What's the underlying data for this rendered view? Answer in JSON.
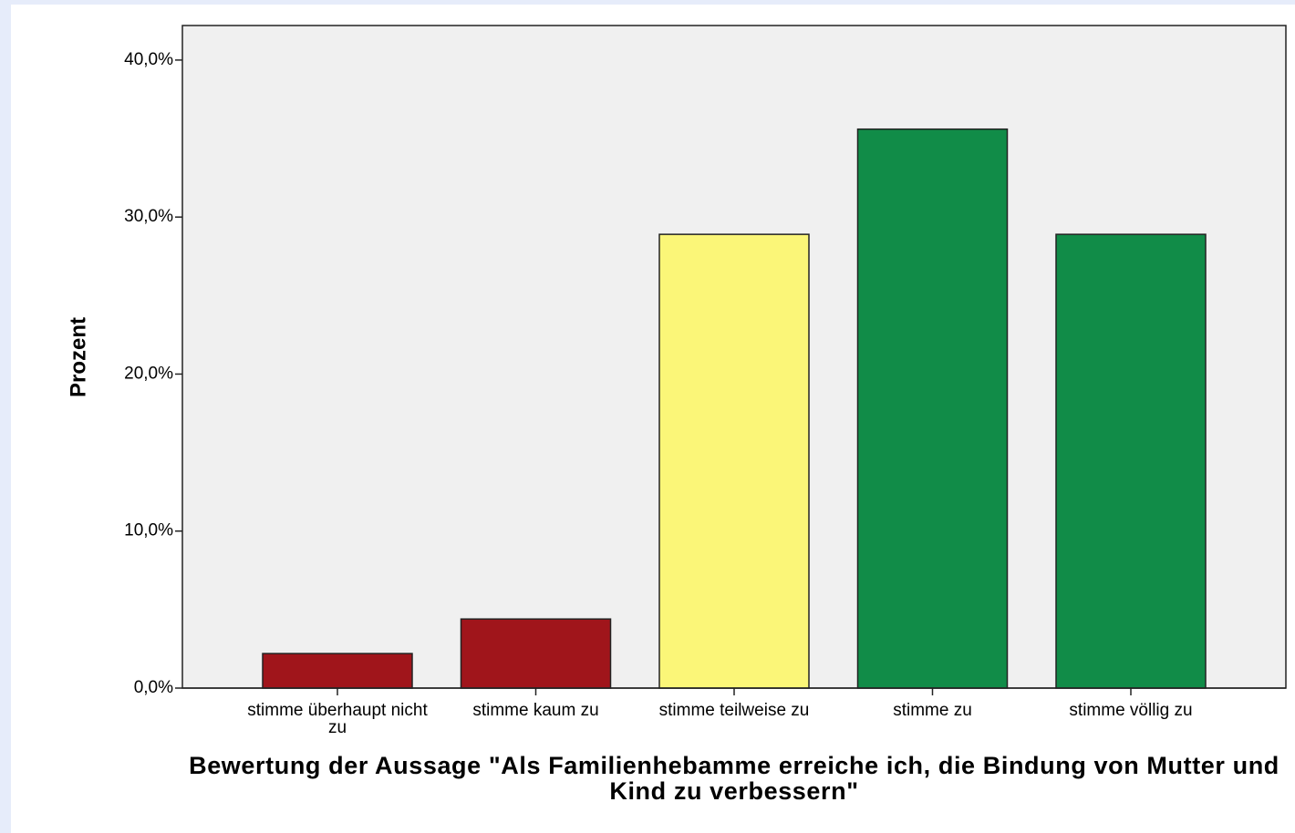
{
  "chart_data": {
    "type": "bar",
    "xlabel": "Bewertung der Aussage \"Als Familienhebamme erreiche ich, die Bindung von Mutter und Kind zu verbessern\"",
    "ylabel": "Prozent",
    "categories": [
      "stimme überhaupt nicht zu",
      "stimme kaum zu",
      "stimme teilweise zu",
      "stimme zu",
      "stimme völlig zu"
    ],
    "values": [
      2.2,
      4.4,
      28.9,
      35.6,
      28.9
    ],
    "colors": [
      "#a0151b",
      "#a0151b",
      "#fbf678",
      "#118c48",
      "#118c48"
    ],
    "ylim": [
      0,
      42.2
    ],
    "yticks": [
      {
        "value": 0,
        "label": "0,0%"
      },
      {
        "value": 10,
        "label": "10,0%"
      },
      {
        "value": 20,
        "label": "20,0%"
      },
      {
        "value": 30,
        "label": "30,0%"
      },
      {
        "value": 40,
        "label": "40,0%"
      }
    ],
    "grid": false
  }
}
